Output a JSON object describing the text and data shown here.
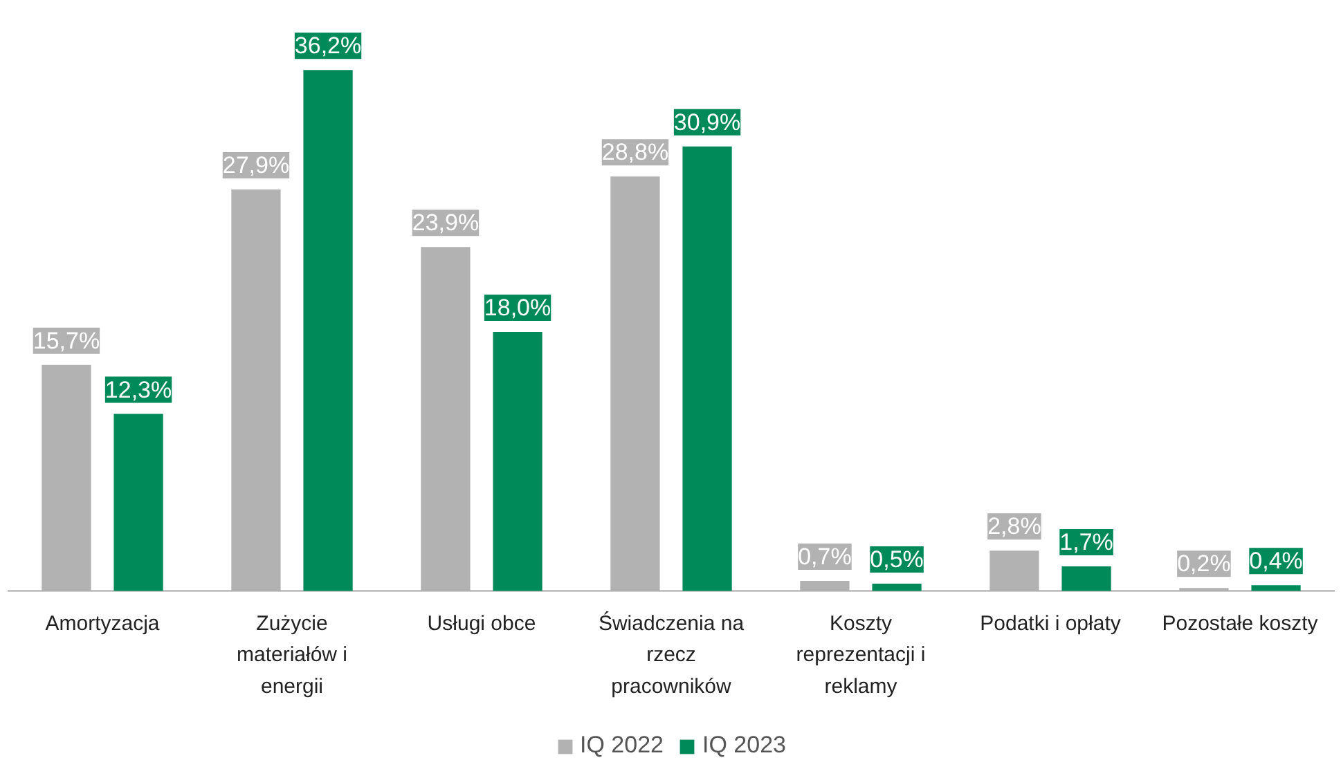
{
  "chart_data": {
    "type": "bar",
    "categories": [
      "Amortyzacja",
      "Zużycie materiałów i energii",
      "Usługi obce",
      "Świadczenia na rzecz pracowników",
      "Koszty reprezentacji i reklamy",
      "Podatki i opłaty",
      "Pozostałe koszty"
    ],
    "series": [
      {
        "name": "IQ 2022",
        "color": "#b2b2b2",
        "values": [
          15.7,
          27.9,
          23.9,
          28.8,
          0.7,
          2.8,
          0.2
        ],
        "value_labels": [
          "15,7%",
          "27,9%",
          "23,9%",
          "28,8%",
          "0,7%",
          "2,8%",
          "0,2%"
        ]
      },
      {
        "name": "IQ 2023",
        "color": "#008a5a",
        "values": [
          12.3,
          36.2,
          18.0,
          30.9,
          0.5,
          1.7,
          0.4
        ],
        "value_labels": [
          "12,3%",
          "36,2%",
          "18,0%",
          "30,9%",
          "0,5%",
          "1,7%",
          "0,4%"
        ]
      }
    ],
    "legend": "bottom",
    "grid": false
  }
}
